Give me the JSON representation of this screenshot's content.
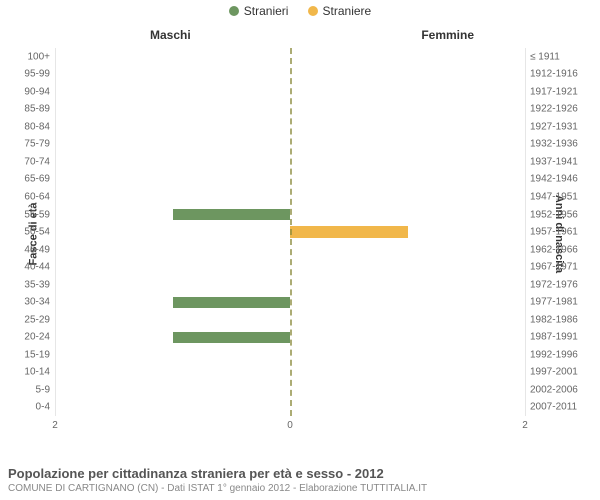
{
  "chart": {
    "type": "population-pyramid",
    "background_color": "#ffffff",
    "grid_color": "#e6e6e6",
    "center_line_color": "#8a8a3a",
    "text_color": "#666666",
    "header_color": "#333333",
    "legend": [
      {
        "label": "Stranieri",
        "color": "#6d9660"
      },
      {
        "label": "Straniere",
        "color": "#f1b74a"
      }
    ],
    "col_headers": {
      "male": "Maschi",
      "female": "Femmine"
    },
    "y_left_title": "Fasce di età",
    "y_right_title": "Anni di nascita",
    "x_max": 2,
    "x_ticks": [
      2,
      0,
      2
    ],
    "bar_height_pct": 64,
    "male_color": "#6d9660",
    "female_color": "#f1b74a",
    "age_groups": [
      {
        "age": "100+",
        "birth": "≤ 1911",
        "male": 0,
        "female": 0
      },
      {
        "age": "95-99",
        "birth": "1912-1916",
        "male": 0,
        "female": 0
      },
      {
        "age": "90-94",
        "birth": "1917-1921",
        "male": 0,
        "female": 0
      },
      {
        "age": "85-89",
        "birth": "1922-1926",
        "male": 0,
        "female": 0
      },
      {
        "age": "80-84",
        "birth": "1927-1931",
        "male": 0,
        "female": 0
      },
      {
        "age": "75-79",
        "birth": "1932-1936",
        "male": 0,
        "female": 0
      },
      {
        "age": "70-74",
        "birth": "1937-1941",
        "male": 0,
        "female": 0
      },
      {
        "age": "65-69",
        "birth": "1942-1946",
        "male": 0,
        "female": 0
      },
      {
        "age": "60-64",
        "birth": "1947-1951",
        "male": 0,
        "female": 0
      },
      {
        "age": "55-59",
        "birth": "1952-1956",
        "male": 1,
        "female": 0
      },
      {
        "age": "50-54",
        "birth": "1957-1961",
        "male": 0,
        "female": 1
      },
      {
        "age": "45-49",
        "birth": "1962-1966",
        "male": 0,
        "female": 0
      },
      {
        "age": "40-44",
        "birth": "1967-1971",
        "male": 0,
        "female": 0
      },
      {
        "age": "35-39",
        "birth": "1972-1976",
        "male": 0,
        "female": 0
      },
      {
        "age": "30-34",
        "birth": "1977-1981",
        "male": 1,
        "female": 0
      },
      {
        "age": "25-29",
        "birth": "1982-1986",
        "male": 0,
        "female": 0
      },
      {
        "age": "20-24",
        "birth": "1987-1991",
        "male": 1,
        "female": 0
      },
      {
        "age": "15-19",
        "birth": "1992-1996",
        "male": 0,
        "female": 0
      },
      {
        "age": "10-14",
        "birth": "1997-2001",
        "male": 0,
        "female": 0
      },
      {
        "age": "5-9",
        "birth": "2002-2006",
        "male": 0,
        "female": 0
      },
      {
        "age": "0-4",
        "birth": "2007-2011",
        "male": 0,
        "female": 0
      }
    ]
  },
  "footer": {
    "title": "Popolazione per cittadinanza straniera per età e sesso - 2012",
    "subtitle": "COMUNE DI CARTIGNANO (CN) - Dati ISTAT 1° gennaio 2012 - Elaborazione TUTTITALIA.IT"
  }
}
